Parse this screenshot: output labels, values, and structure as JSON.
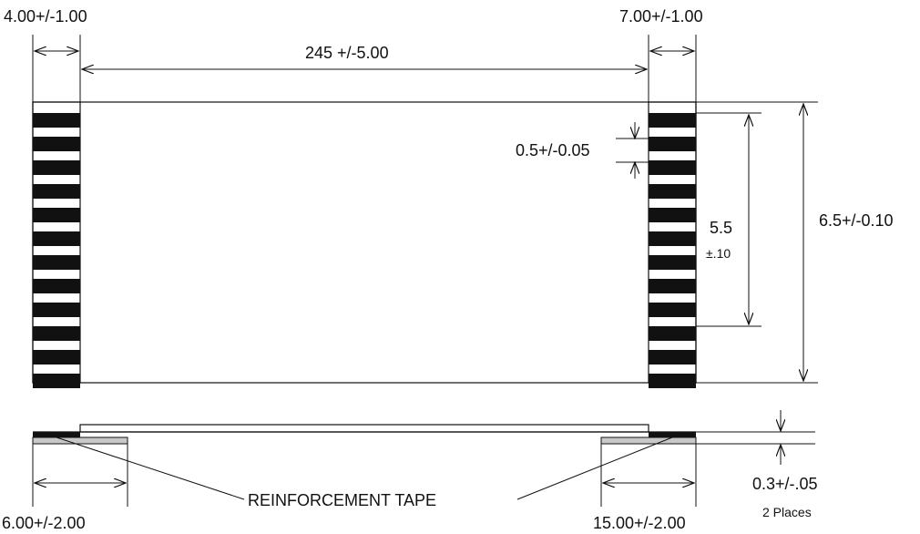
{
  "dimensions": {
    "left_contact_width": "4.00+/-1.00",
    "right_contact_width": "7.00+/-1.00",
    "overall_length": "245 +/-5.00",
    "pitch": "0.5+/-0.05",
    "contact_span_value": "5.5",
    "contact_span_tol": "±.10",
    "overall_width": "6.5+/-0.10",
    "thickness": "0.3+/-.05",
    "thickness_note": "2 Places",
    "left_tape_length": "6.00+/-2.00",
    "right_tape_length": "15.00+/-2.00"
  },
  "labels": {
    "reinforcement_tape": "REINFORCEMENT TAPE"
  },
  "colors": {
    "line": "#111111",
    "contact": "#111111",
    "tape_fill": "#c8c8c8"
  }
}
